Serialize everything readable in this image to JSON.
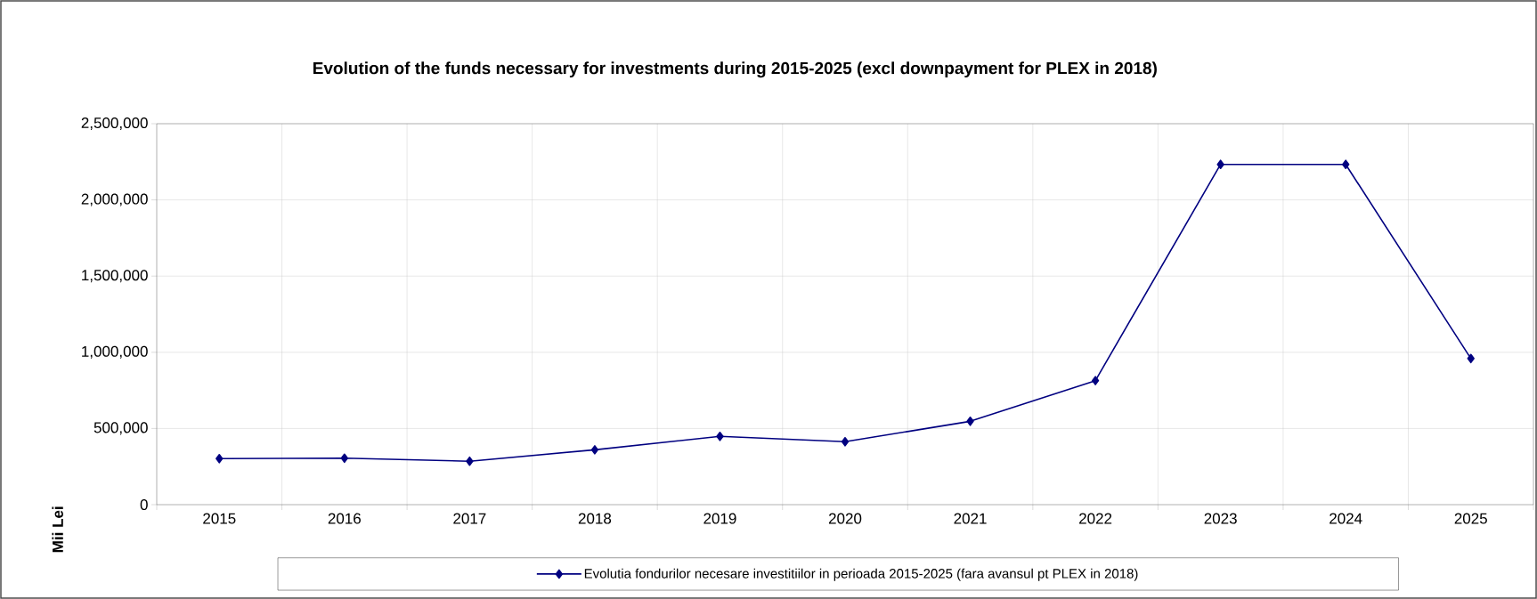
{
  "chart_data": {
    "type": "line",
    "title": "Evolution of the funds necessary for investments during 2015-2025 (excl downpayment for PLEX in 2018)",
    "ylabel": "Mii Lei",
    "categories": [
      "2015",
      "2016",
      "2017",
      "2018",
      "2019",
      "2020",
      "2021",
      "2022",
      "2023",
      "2024",
      "2025"
    ],
    "series": [
      {
        "name": "Evolutia fondurilor necesare investitiilor in perioada 2015-2025 (fara avansul pt PLEX in 2018)",
        "color": "#000080",
        "values": [
          302000,
          305000,
          285000,
          360000,
          448000,
          413000,
          547000,
          814000,
          2233000,
          2233000,
          959000
        ]
      }
    ],
    "ylim": [
      0,
      2500000
    ],
    "yticks": [
      0,
      {
        "value": 500000,
        "label": "500,000"
      },
      {
        "value": 1000000,
        "label": "1,000,000"
      },
      {
        "value": 1500000,
        "label": "1,500,000"
      },
      {
        "value": 2000000,
        "label": "2,000,000"
      },
      {
        "value": 2500000,
        "label": "2,500,000"
      }
    ],
    "grid": true,
    "legend": "bottom",
    "marker": "diamond",
    "line_style": "solid"
  }
}
